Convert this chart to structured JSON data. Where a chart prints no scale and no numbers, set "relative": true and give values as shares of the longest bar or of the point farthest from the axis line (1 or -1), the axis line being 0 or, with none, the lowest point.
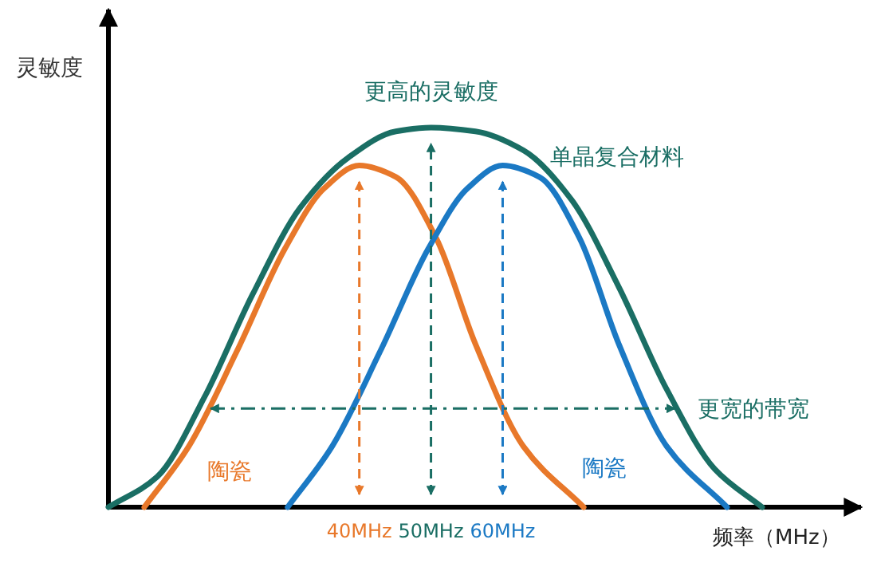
{
  "chart_data": {
    "type": "line",
    "relative": true,
    "ylabel": "灵敏度",
    "xlabel": "频率（MHz）",
    "xlim": [
      5,
      110
    ],
    "xticks": [
      {
        "value": 40,
        "label": "40MHz"
      },
      {
        "value": 50,
        "label": "50MHz"
      },
      {
        "value": 60,
        "label": "60MHz"
      }
    ],
    "grid": false,
    "marker": "none",
    "line_style": "solid",
    "series": [
      {
        "name": "单晶复合材料",
        "color": "#1a6e64",
        "x": [
          5,
          11.8,
          18.4,
          25.1,
          31.8,
          38.4,
          45.1,
          50,
          56.2,
          62.9,
          69.6,
          76.2,
          82.9,
          89.6,
          96.2
        ],
        "values": [
          0,
          0.08,
          0.29,
          0.56,
          0.79,
          0.92,
          0.99,
          1,
          0.99,
          0.94,
          0.81,
          0.58,
          0.31,
          0.1,
          0
        ]
      },
      {
        "name": "陶瓷",
        "color": "#e8782a",
        "x": [
          10,
          16.2,
          22.9,
          29.6,
          35.1,
          40,
          45.1,
          50.7,
          56.2,
          62.9,
          71.3
        ],
        "values": [
          0,
          0.16,
          0.41,
          0.68,
          0.84,
          0.9,
          0.87,
          0.71,
          0.43,
          0.16,
          0
        ]
      },
      {
        "name": "陶瓷",
        "color": "#1b79c4",
        "x": [
          30,
          36.2,
          42.9,
          49.6,
          55.1,
          60,
          65.1,
          70.7,
          76.2,
          82.9,
          91.3
        ],
        "values": [
          0,
          0.16,
          0.41,
          0.68,
          0.84,
          0.9,
          0.87,
          0.71,
          0.43,
          0.16,
          0
        ]
      }
    ],
    "ref_lines": [
      {
        "axis": "x",
        "value": 40,
        "color": "#e8782a",
        "line_style": "dashed"
      },
      {
        "axis": "x",
        "value": 50,
        "color": "#1a6e64",
        "line_style": "dashed",
        "label": "更高的灵敏度"
      },
      {
        "axis": "x",
        "value": 60,
        "color": "#1b79c4",
        "line_style": "dashed"
      },
      {
        "axis": "y",
        "value": 0.26,
        "color": "#1a6e64",
        "line_style": "dashed",
        "label": "更宽的带宽"
      }
    ]
  }
}
